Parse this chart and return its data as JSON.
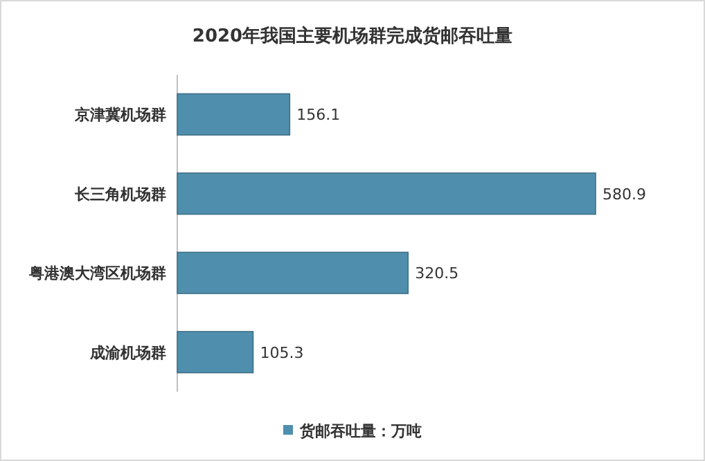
{
  "chart_data": {
    "type": "bar",
    "orientation": "horizontal",
    "title": "2020年我国主要机场群完成货邮吞吐量",
    "categories": [
      "京津冀机场群",
      "长三角机场群",
      "粤港澳大湾区机场群",
      "成渝机场群"
    ],
    "series": [
      {
        "name": "货邮吞吐量：万吨",
        "color": "#4f8fad",
        "values": [
          156.1,
          580.9,
          320.5,
          105.3
        ]
      }
    ],
    "data_labels": true,
    "legend": "bottom"
  }
}
